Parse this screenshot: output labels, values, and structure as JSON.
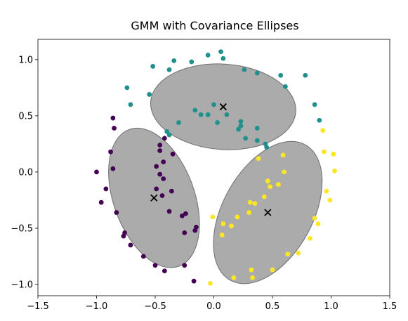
{
  "chart_data": {
    "type": "scatter",
    "title": "GMM with Covariance Ellipses",
    "xlabel": "",
    "ylabel": "",
    "xlim": [
      -1.5,
      1.5
    ],
    "ylim": [
      -1.1,
      1.18
    ],
    "grid": false,
    "x_ticks": [
      -1.5,
      -1.0,
      -0.5,
      0.0,
      0.5,
      1.0,
      1.5
    ],
    "x_tick_labels": [
      "−1.5",
      "−1.0",
      "−0.5",
      "0.0",
      "0.5",
      "1.0",
      "1.5"
    ],
    "y_ticks": [
      -1.0,
      -0.5,
      0.0,
      0.5,
      1.0
    ],
    "y_tick_labels": [
      "−1.0",
      "−0.5",
      "0.0",
      "0.5",
      "1.0"
    ],
    "colors": {
      "cluster_0": "#440154",
      "cluster_1": "#21908d",
      "cluster_2": "#fde725",
      "ellipse_fill": "#a6a6a6",
      "ellipse_edge": "#6e6e6e",
      "center": "#000000"
    },
    "series": [
      {
        "cluster": 0,
        "points": [
          [
            -0.86,
            0.48
          ],
          [
            -0.85,
            0.39
          ],
          [
            -0.88,
            0.18
          ],
          [
            -0.86,
            0.03
          ],
          [
            -1.0,
            0.0
          ],
          [
            -0.92,
            -0.15
          ],
          [
            -0.96,
            -0.27
          ],
          [
            -0.83,
            -0.36
          ],
          [
            -0.76,
            -0.54
          ],
          [
            -0.77,
            -0.57
          ],
          [
            -0.71,
            -0.65
          ],
          [
            -0.6,
            -0.75
          ],
          [
            -0.5,
            -0.83
          ],
          [
            -0.42,
            -0.88
          ],
          [
            -0.25,
            -0.83
          ],
          [
            -0.17,
            -0.97
          ],
          [
            -0.42,
            0.3
          ],
          [
            -0.46,
            0.24
          ],
          [
            -0.46,
            0.19
          ],
          [
            -0.35,
            0.16
          ],
          [
            -0.49,
            0.05
          ],
          [
            -0.43,
            0.09
          ],
          [
            -0.46,
            -0.02
          ],
          [
            -0.43,
            -0.06
          ],
          [
            -0.49,
            -0.15
          ],
          [
            -0.44,
            -0.21
          ],
          [
            -0.36,
            -0.17
          ],
          [
            -0.38,
            -0.35
          ],
          [
            -0.27,
            -0.39
          ],
          [
            -0.24,
            -0.37
          ],
          [
            -0.15,
            -0.49
          ],
          [
            -0.16,
            -0.52
          ],
          [
            -0.25,
            -0.54
          ]
        ]
      },
      {
        "cluster": 1,
        "points": [
          [
            -0.05,
            1.04
          ],
          [
            0.06,
            1.07
          ],
          [
            0.08,
            1.01
          ],
          [
            -0.34,
            0.99
          ],
          [
            -0.52,
            0.94
          ],
          [
            -0.38,
            0.91
          ],
          [
            -0.19,
            0.98
          ],
          [
            0.26,
            0.91
          ],
          [
            0.37,
            0.88
          ],
          [
            -0.74,
            0.75
          ],
          [
            -0.55,
            0.69
          ],
          [
            -0.71,
            0.6
          ],
          [
            0.57,
            0.86
          ],
          [
            0.61,
            0.76
          ],
          [
            0.78,
            0.86
          ],
          [
            0.86,
            0.6
          ],
          [
            0.9,
            0.46
          ],
          [
            -0.16,
            0.55
          ],
          [
            -0.11,
            0.51
          ],
          [
            -0.05,
            0.51
          ],
          [
            0.03,
            0.44
          ],
          [
            0.11,
            0.51
          ],
          [
            0.23,
            0.45
          ],
          [
            0.23,
            0.41
          ],
          [
            0.21,
            0.38
          ],
          [
            0.37,
            0.39
          ],
          [
            -0.3,
            0.44
          ],
          [
            -0.4,
            0.36
          ],
          [
            -0.38,
            0.33
          ],
          [
            0.27,
            0.3
          ],
          [
            0.37,
            0.28
          ],
          [
            0.44,
            0.25
          ],
          [
            0.45,
            0.22
          ],
          [
            0.0,
            0.6
          ]
        ]
      },
      {
        "cluster": 2,
        "points": [
          [
            0.93,
            0.37
          ],
          [
            0.94,
            0.18
          ],
          [
            1.02,
            0.16
          ],
          [
            1.03,
            0.01
          ],
          [
            0.96,
            -0.17
          ],
          [
            0.99,
            -0.25
          ],
          [
            0.86,
            -0.41
          ],
          [
            0.89,
            -0.46
          ],
          [
            0.82,
            -0.59
          ],
          [
            0.72,
            -0.72
          ],
          [
            0.63,
            -0.73
          ],
          [
            0.5,
            -0.87
          ],
          [
            0.32,
            -0.87
          ],
          [
            0.33,
            -0.94
          ],
          [
            0.17,
            -0.94
          ],
          [
            -0.03,
            -0.99
          ],
          [
            -0.01,
            -0.4
          ],
          [
            0.08,
            -0.46
          ],
          [
            0.07,
            -0.56
          ],
          [
            0.2,
            -0.4
          ],
          [
            0.15,
            -0.48
          ],
          [
            0.3,
            -0.36
          ],
          [
            0.31,
            -0.27
          ],
          [
            0.35,
            -0.28
          ],
          [
            0.43,
            -0.22
          ],
          [
            0.46,
            -0.08
          ],
          [
            0.48,
            -0.13
          ],
          [
            0.55,
            -0.11
          ],
          [
            0.6,
            0.0
          ],
          [
            0.59,
            0.15
          ],
          [
            0.38,
            0.12
          ]
        ]
      }
    ],
    "components": [
      {
        "cluster": 0,
        "mean": [
          -0.51,
          -0.23
        ],
        "half_axes": [
          0.62,
          0.36
        ],
        "angle_deg": -70
      },
      {
        "cluster": 1,
        "mean": [
          0.08,
          0.58
        ],
        "half_axes": [
          0.62,
          0.38
        ],
        "angle_deg": -4
      },
      {
        "cluster": 2,
        "mean": [
          0.46,
          -0.36
        ],
        "half_axes": [
          0.66,
          0.4
        ],
        "angle_deg": 61
      }
    ]
  }
}
